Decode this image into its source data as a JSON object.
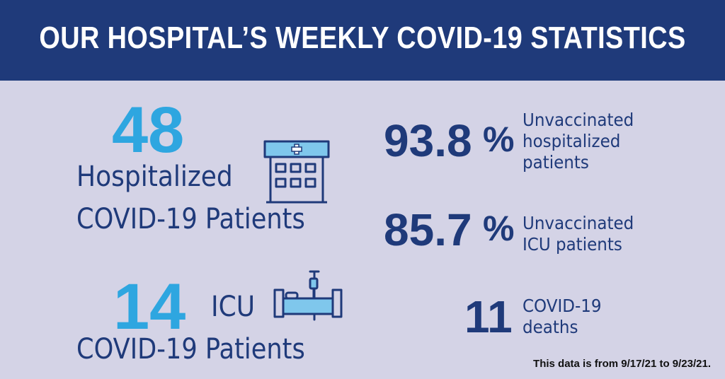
{
  "header": {
    "title": "OUR HOSPITAL’S WEEKLY COVID-19 STATISTICS"
  },
  "hospitalized": {
    "count": "48",
    "label_line1": "Hospitalized",
    "label_line2": "COVID-19 Patients",
    "icon": "hospital-building-icon"
  },
  "icu": {
    "count": "14",
    "label_short": "ICU",
    "label_line2": "COVID-19 Patients",
    "icon": "hospital-bed-iv-icon"
  },
  "stats": [
    {
      "value": "93.8",
      "unit": "%",
      "desc_lines": [
        "Unvaccinated",
        "hospitalized",
        "patients"
      ]
    },
    {
      "value": "85.7",
      "unit": "%",
      "desc_lines": [
        "Unvaccinated",
        "ICU patients"
      ]
    },
    {
      "value": "11",
      "unit": "",
      "desc_lines": [
        "COVID-19",
        "deaths"
      ]
    }
  ],
  "footnote": "This data is from 9/17/21 to 9/23/21.",
  "colors": {
    "header_bg": "#1f3a7a",
    "page_bg": "#d4d3e6",
    "accent_blue": "#2ea6e0",
    "navy": "#1f3a7a"
  }
}
